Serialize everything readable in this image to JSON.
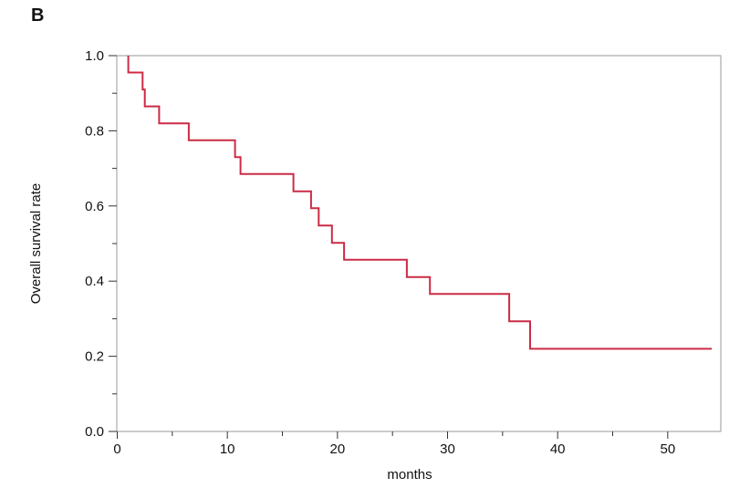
{
  "panel_label": "B",
  "chart_data": {
    "type": "line",
    "step": true,
    "xlabel": "months",
    "ylabel": "Overall survival rate",
    "xlim": [
      0,
      55
    ],
    "ylim": [
      0.0,
      1.0
    ],
    "x_ticks": [
      0,
      10,
      20,
      30,
      40,
      50
    ],
    "x_tick_labels": [
      "0",
      "10",
      "20",
      "30",
      "40",
      "50"
    ],
    "x_minor_ticks": [
      5,
      15,
      25,
      35,
      45
    ],
    "y_ticks": [
      0.0,
      0.2,
      0.4,
      0.6,
      0.8,
      1.0
    ],
    "y_tick_labels": [
      "0.0",
      "0.2",
      "0.4",
      "0.6",
      "0.8",
      "1.0"
    ],
    "y_minor_ticks": [
      0.1,
      0.3,
      0.5,
      0.7,
      0.9
    ],
    "grid": false,
    "color": "#cc2b45",
    "series": [
      {
        "x": [
          1.0,
          1.0,
          2.3,
          2.3,
          2.5,
          2.5,
          3.8,
          3.8,
          6.5,
          6.5,
          10.7,
          10.7,
          11.2,
          11.2,
          16.0,
          16.0,
          17.6,
          17.6,
          18.3,
          18.3,
          19.5,
          19.5,
          20.6,
          20.6,
          26.3,
          26.3,
          28.4,
          28.4,
          35.6,
          35.6,
          37.5,
          37.5,
          54.0
        ],
        "y": [
          1.0,
          0.955,
          0.955,
          0.91,
          0.91,
          0.865,
          0.865,
          0.82,
          0.82,
          0.775,
          0.775,
          0.73,
          0.73,
          0.685,
          0.685,
          0.639,
          0.639,
          0.594,
          0.594,
          0.548,
          0.548,
          0.502,
          0.502,
          0.457,
          0.457,
          0.411,
          0.411,
          0.366,
          0.366,
          0.293,
          0.293,
          0.22,
          0.22
        ]
      }
    ]
  }
}
